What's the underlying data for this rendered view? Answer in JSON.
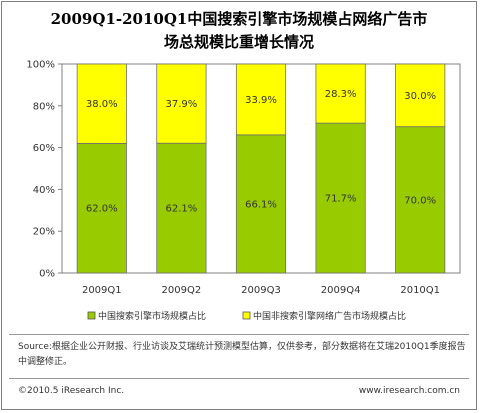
{
  "title": {
    "line1": "2009Q1-2010Q1中国搜索引擎市场规模占网络广告市",
    "line2": "场总规模比重增长情况"
  },
  "chart_data": {
    "type": "bar",
    "stacked": true,
    "categories": [
      "2009Q1",
      "2009Q2",
      "2009Q3",
      "2009Q4",
      "2010Q1"
    ],
    "series": [
      {
        "name": "中国搜索引擎市场规模占比",
        "color": "#99cc00",
        "values": [
          62.0,
          62.1,
          66.1,
          71.7,
          70.0
        ],
        "labels": [
          "62.0%",
          "62.1%",
          "66.1%",
          "71.7%",
          "70.0%"
        ]
      },
      {
        "name": "中国非搜索引擎网络广告市场规模占比",
        "color": "#ffff00",
        "values": [
          38.0,
          37.9,
          33.9,
          28.3,
          30.0
        ],
        "labels": [
          "38.0%",
          "37.9%",
          "33.9%",
          "28.3%",
          "30.0%"
        ]
      }
    ],
    "ylim": [
      0,
      100
    ],
    "yticks": [
      "0%",
      "20%",
      "40%",
      "60%",
      "80%",
      "100%"
    ],
    "grid": false,
    "legend": "bottom"
  },
  "source": "Source:根据企业公开财报、行业访谈及艾瑞统计预测模型估算，仅供参考，部分数据将在艾瑞2010Q1季度报告中调整修正。",
  "footer": {
    "copyright": "©2010.5 iResearch Inc.",
    "url": "www.iresearch.com.cn"
  }
}
